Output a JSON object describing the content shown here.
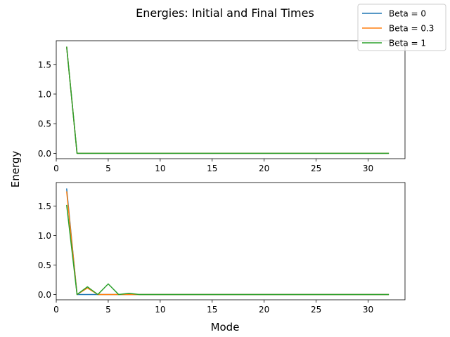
{
  "chart_data": {
    "type": "line",
    "title": "Energies: Initial and Final Times",
    "xlabel": "Mode",
    "ylabel": "Energy",
    "x": [
      1,
      2,
      3,
      4,
      5,
      6,
      7,
      8,
      9,
      10,
      11,
      12,
      13,
      14,
      15,
      16,
      17,
      18,
      19,
      20,
      21,
      22,
      23,
      24,
      25,
      26,
      27,
      28,
      29,
      30,
      31,
      32
    ],
    "xlim": [
      0,
      33.55
    ],
    "xticks": [
      0,
      5,
      10,
      15,
      20,
      25,
      30
    ],
    "legend": {
      "placement": "top-right",
      "entries": [
        "Beta = 0",
        "Beta = 0.3",
        "Beta = 1"
      ]
    },
    "colors": [
      "#1f77b4",
      "#ff7f0e",
      "#2ca02c"
    ],
    "subplots": [
      {
        "ylim": [
          -0.09,
          1.9
        ],
        "yticks": [
          "0.0",
          "0.5",
          "1.0",
          "1.5"
        ],
        "ytick_values": [
          0.0,
          0.5,
          1.0,
          1.5
        ],
        "series": [
          {
            "name": "Beta = 0",
            "values": [
              1.8,
              0,
              0,
              0,
              0,
              0,
              0,
              0,
              0,
              0,
              0,
              0,
              0,
              0,
              0,
              0,
              0,
              0,
              0,
              0,
              0,
              0,
              0,
              0,
              0,
              0,
              0,
              0,
              0,
              0,
              0,
              0
            ]
          },
          {
            "name": "Beta = 0.3",
            "values": [
              1.8,
              0,
              0,
              0,
              0,
              0,
              0,
              0,
              0,
              0,
              0,
              0,
              0,
              0,
              0,
              0,
              0,
              0,
              0,
              0,
              0,
              0,
              0,
              0,
              0,
              0,
              0,
              0,
              0,
              0,
              0,
              0
            ]
          },
          {
            "name": "Beta = 1",
            "values": [
              1.8,
              0,
              0,
              0,
              0,
              0,
              0,
              0,
              0,
              0,
              0,
              0,
              0,
              0,
              0,
              0,
              0,
              0,
              0,
              0,
              0,
              0,
              0,
              0,
              0,
              0,
              0,
              0,
              0,
              0,
              0,
              0
            ]
          }
        ]
      },
      {
        "ylim": [
          -0.09,
          1.9
        ],
        "yticks": [
          "0.0",
          "0.5",
          "1.0",
          "1.5"
        ],
        "ytick_values": [
          0.0,
          0.5,
          1.0,
          1.5
        ],
        "series": [
          {
            "name": "Beta = 0",
            "values": [
              1.8,
              0,
              0,
              0,
              0,
              0,
              0,
              0,
              0,
              0,
              0,
              0,
              0,
              0,
              0,
              0,
              0,
              0,
              0,
              0,
              0,
              0,
              0,
              0,
              0,
              0,
              0,
              0,
              0,
              0,
              0,
              0
            ]
          },
          {
            "name": "Beta = 0.3",
            "values": [
              1.75,
              0,
              0.11,
              0,
              0,
              0,
              0,
              0,
              0,
              0,
              0,
              0,
              0,
              0,
              0,
              0,
              0,
              0,
              0,
              0,
              0,
              0,
              0,
              0,
              0,
              0,
              0,
              0,
              0,
              0,
              0,
              0
            ]
          },
          {
            "name": "Beta = 1",
            "values": [
              1.52,
              0,
              0.13,
              0,
              0.18,
              0,
              0.02,
              0,
              0,
              0,
              0,
              0,
              0,
              0,
              0,
              0,
              0,
              0,
              0,
              0,
              0,
              0,
              0,
              0,
              0,
              0,
              0,
              0,
              0,
              0,
              0,
              0
            ]
          }
        ]
      }
    ]
  }
}
